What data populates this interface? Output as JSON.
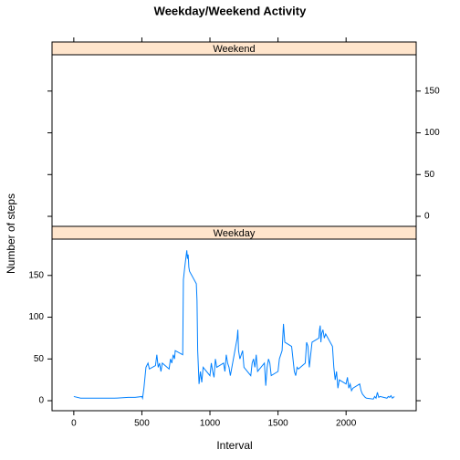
{
  "chart_data": {
    "type": "line",
    "title": "Weekday/Weekend Activity",
    "xlabel": "Interval",
    "ylabel": "Number of steps",
    "xlim": [
      -160,
      2515
    ],
    "xticks": [
      0,
      500,
      1000,
      1500,
      2000
    ],
    "ylim": [
      -12,
      193.5
    ],
    "yticks": [
      0,
      50,
      100,
      150
    ],
    "strip_color": "#ffe5cc",
    "panels": [
      {
        "strip": "Weekend",
        "series": [
          {
            "color": "#0080ff",
            "x": [],
            "values": []
          }
        ]
      },
      {
        "strip": "Weekday",
        "series": [
          {
            "color": "#0080ff",
            "x": [
              0,
              50,
              100,
              200,
              300,
              400,
              450,
              500,
              505,
              515,
              530,
              545,
              555,
              600,
              610,
              620,
              630,
              640,
              650,
              700,
              710,
              720,
              730,
              740,
              745,
              800,
              805,
              815,
              830,
              835,
              840,
              845,
              850,
              900,
              905,
              910,
              915,
              920,
              930,
              940,
              950,
              1000,
              1010,
              1020,
              1030,
              1040,
              1050,
              1100,
              1110,
              1120,
              1130,
              1140,
              1150,
              1200,
              1205,
              1210,
              1220,
              1230,
              1240,
              1250,
              1300,
              1310,
              1320,
              1330,
              1340,
              1350,
              1400,
              1410,
              1420,
              1430,
              1440,
              1450,
              1500,
              1510,
              1520,
              1530,
              1540,
              1550,
              1600,
              1610,
              1620,
              1630,
              1640,
              1650,
              1700,
              1710,
              1720,
              1730,
              1740,
              1750,
              1800,
              1805,
              1810,
              1815,
              1820,
              1830,
              1840,
              1850,
              1900,
              1910,
              1920,
              1930,
              1940,
              1950,
              2000,
              2010,
              2020,
              2030,
              2040,
              2050,
              2100,
              2110,
              2120,
              2130,
              2140,
              2150,
              2200,
              2210,
              2220,
              2230,
              2240,
              2250,
              2300,
              2310,
              2320,
              2330,
              2340,
              2355
            ],
            "values": [
              5,
              3,
              3,
              3,
              3,
              4,
              4,
              5,
              3,
              15,
              40,
              45,
              38,
              42,
              55,
              40,
              45,
              35,
              45,
              38,
              50,
              45,
              55,
              50,
              60,
              55,
              145,
              160,
              180,
              170,
              175,
              160,
              155,
              140,
              120,
              60,
              40,
              20,
              35,
              22,
              40,
              30,
              45,
              35,
              28,
              50,
              40,
              45,
              35,
              55,
              45,
              40,
              30,
              75,
              85,
              60,
              50,
              55,
              60,
              40,
              30,
              45,
              50,
              40,
              55,
              35,
              45,
              18,
              40,
              50,
              45,
              30,
              35,
              50,
              55,
              60,
              92,
              70,
              65,
              50,
              35,
              30,
              40,
              38,
              45,
              70,
              65,
              40,
              55,
              70,
              75,
              85,
              90,
              70,
              80,
              85,
              75,
              80,
              65,
              40,
              25,
              35,
              15,
              25,
              20,
              28,
              15,
              20,
              12,
              15,
              20,
              12,
              8,
              6,
              4,
              3,
              2,
              5,
              3,
              10,
              4,
              5,
              3,
              5,
              4,
              6,
              3,
              5
            ]
          }
        ]
      }
    ]
  }
}
